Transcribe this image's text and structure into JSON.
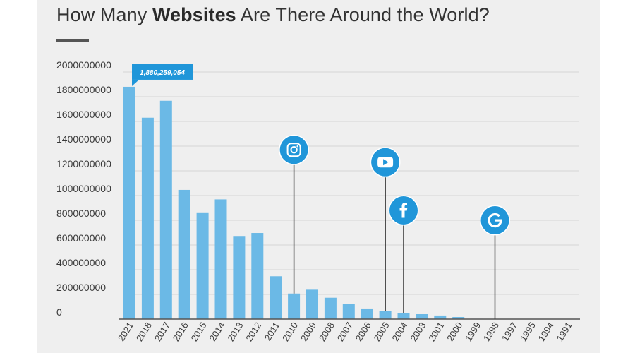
{
  "title": {
    "prefix": "How Many ",
    "bold": "Websites",
    "suffix": " Are There Around the World?"
  },
  "colors": {
    "bar": "#6bb9e6",
    "accent": "#2096d9",
    "grid": "#d6d6d6",
    "axis": "#555555",
    "panel": "#efefef"
  },
  "chart_data": {
    "type": "bar",
    "title": "How Many Websites Are There Around the World?",
    "xlabel": "",
    "ylabel": "",
    "ylim": [
      0,
      2000000000
    ],
    "yticks": [
      0,
      200000000,
      400000000,
      600000000,
      800000000,
      1000000000,
      1200000000,
      1400000000,
      1600000000,
      1800000000,
      2000000000
    ],
    "grid": true,
    "categories": [
      "2021",
      "2018",
      "2017",
      "2016",
      "2015",
      "2014",
      "2013",
      "2012",
      "2011",
      "2010",
      "2009",
      "2008",
      "2007",
      "2006",
      "2005",
      "2004",
      "2003",
      "2001",
      "2000",
      "1999",
      "1998",
      "1997",
      "1995",
      "1994",
      "1991"
    ],
    "values": [
      1880259054,
      1630000000,
      1767000000,
      1046000000,
      864000000,
      969000000,
      673000000,
      697000000,
      347000000,
      207000000,
      238000000,
      173000000,
      121000000,
      86000000,
      65000000,
      51000000,
      40000000,
      29000000,
      17000000,
      3000000,
      2400000,
      1100000,
      23500,
      2700,
      1
    ],
    "data_labels": [
      {
        "category": "2021",
        "text": "1,880,259,054"
      }
    ],
    "annotations": [
      {
        "category": "2010",
        "icon": "instagram-icon",
        "marker_value": 1370000000
      },
      {
        "category": "2005",
        "icon": "youtube-icon",
        "marker_value": 1270000000
      },
      {
        "category": "2004",
        "icon": "facebook-icon",
        "marker_value": 880000000
      },
      {
        "category": "1998",
        "icon": "google-icon",
        "marker_value": 800000000
      }
    ]
  }
}
